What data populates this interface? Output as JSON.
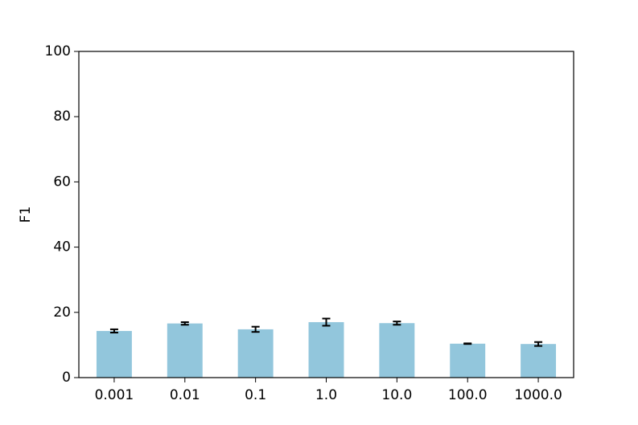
{
  "chart_data": {
    "type": "bar",
    "ylabel": "F1",
    "categories": [
      "0.001",
      "0.01",
      "0.1",
      "1.0",
      "10.0",
      "100.0",
      "1000.0"
    ],
    "values": [
      14.3,
      16.6,
      14.8,
      17.0,
      16.7,
      10.4,
      10.3
    ],
    "errors": [
      0.5,
      0.4,
      0.8,
      1.1,
      0.5,
      0.1,
      0.6
    ],
    "color": "#92c6dc",
    "ylim": [
      0,
      100
    ],
    "yticks": [
      0,
      20,
      40,
      60,
      80,
      100
    ],
    "grid": false
  }
}
